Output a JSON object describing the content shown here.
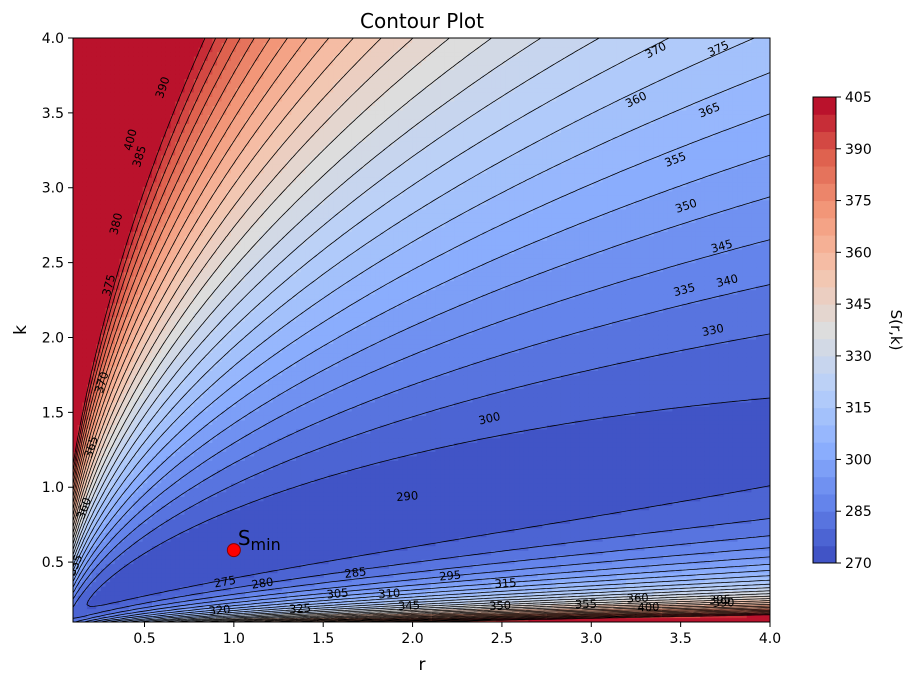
{
  "chart_data": {
    "type": "contour",
    "title": "Contour Plot",
    "xlabel": "r",
    "ylabel": "k",
    "xlim": [
      0.1,
      4.0
    ],
    "ylim": [
      0.1,
      4.0
    ],
    "x_ticks": [
      "0.5",
      "1.0",
      "1.5",
      "2.0",
      "2.5",
      "3.0",
      "3.5",
      "4.0"
    ],
    "y_ticks": [
      "0.5",
      "1.0",
      "1.5",
      "2.0",
      "2.5",
      "3.0",
      "3.5",
      "4.0"
    ],
    "colormap": "coolwarm",
    "levels_min": 270,
    "levels_max": 405,
    "level_step": 5,
    "colorbar": {
      "label": "S(r,k)",
      "ticks": [
        "270",
        "285",
        "300",
        "315",
        "330",
        "345",
        "360",
        "375",
        "390",
        "405"
      ]
    },
    "minimum": {
      "r": 1.0,
      "k": 0.58,
      "label": "S",
      "label_sub": "min",
      "color": "#ff0000"
    },
    "contour_labels": [
      {
        "text": "275",
        "r": 0.95,
        "k": 0.37
      },
      {
        "text": "280",
        "r": 1.16,
        "k": 0.36
      },
      {
        "text": "285",
        "r": 1.68,
        "k": 0.43
      },
      {
        "text": "290",
        "r": 1.97,
        "k": 0.94
      },
      {
        "text": "295",
        "r": 2.21,
        "k": 0.41
      },
      {
        "text": "300",
        "r": 2.43,
        "k": 1.46
      },
      {
        "text": "305",
        "r": 1.58,
        "k": 0.29
      },
      {
        "text": "310",
        "r": 1.87,
        "k": 0.29
      },
      {
        "text": "315",
        "r": 2.52,
        "k": 0.36
      },
      {
        "text": "320",
        "r": 0.92,
        "k": 0.18
      },
      {
        "text": "325",
        "r": 1.37,
        "k": 0.19
      },
      {
        "text": "330",
        "r": 3.68,
        "k": 2.05
      },
      {
        "text": "335",
        "r": 3.52,
        "k": 2.32
      },
      {
        "text": "340",
        "r": 3.76,
        "k": 2.38
      },
      {
        "text": "345",
        "r": 3.73,
        "k": 2.61
      },
      {
        "text": "350",
        "r": 3.53,
        "k": 2.88
      },
      {
        "text": "355",
        "r": 3.47,
        "k": 3.19
      },
      {
        "text": "360",
        "r": 3.25,
        "k": 3.59
      },
      {
        "text": "365",
        "r": 3.66,
        "k": 3.52
      },
      {
        "text": "370",
        "r": 3.36,
        "k": 3.92
      },
      {
        "text": "375",
        "r": 3.71,
        "k": 3.93
      },
      {
        "text": "380",
        "r": 0.34,
        "k": 2.76
      },
      {
        "text": "385",
        "r": 0.47,
        "k": 3.21
      },
      {
        "text": "390",
        "r": 0.6,
        "k": 3.67
      },
      {
        "text": "400",
        "r": 0.42,
        "k": 3.32
      },
      {
        "text": "375",
        "r": 0.3,
        "k": 2.35
      },
      {
        "text": "370",
        "r": 0.26,
        "k": 1.7
      },
      {
        "text": "365",
        "r": 0.2,
        "k": 1.27
      },
      {
        "text": "360",
        "r": 0.16,
        "k": 0.86
      },
      {
        "text": "355",
        "r": 0.11,
        "k": 0.48
      },
      {
        "text": "345",
        "r": 1.98,
        "k": 0.21
      },
      {
        "text": "350",
        "r": 2.49,
        "k": 0.21
      },
      {
        "text": "355",
        "r": 2.97,
        "k": 0.22
      },
      {
        "text": "360",
        "r": 3.26,
        "k": 0.26
      },
      {
        "text": "400",
        "r": 3.32,
        "k": 0.2
      },
      {
        "text": "395",
        "r": 3.72,
        "k": 0.25
      },
      {
        "text": "390",
        "r": 3.74,
        "k": 0.23
      }
    ]
  }
}
